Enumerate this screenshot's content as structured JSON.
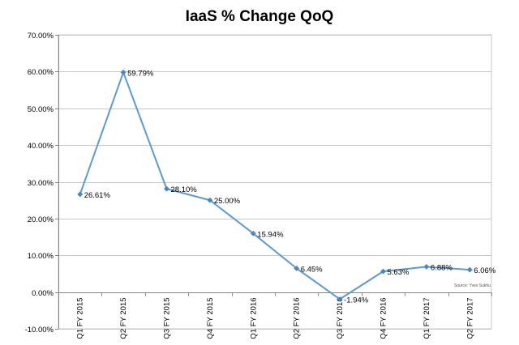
{
  "chart_data": {
    "type": "line",
    "title": "IaaS % Change QoQ",
    "xlabel": "",
    "ylabel": "",
    "categories": [
      "Q1 FY 2015",
      "Q2 FY 2015",
      "Q3 FY 2015",
      "Q4 FY 2015",
      "Q1 FY 2016",
      "Q2 FY 2016",
      "Q3 FY 2016",
      "Q4 FY 2016",
      "Q1 FY 2017",
      "Q2 FY 2017"
    ],
    "values": [
      26.61,
      59.79,
      28.1,
      25.0,
      15.94,
      6.45,
      -1.94,
      5.63,
      6.88,
      6.06
    ],
    "data_labels": [
      "26.61%",
      "59.79%",
      "28.10%",
      "25.00%",
      "15.94%",
      "6.45%",
      "-1.94%",
      "5.63%",
      "6.88%",
      "6.06%"
    ],
    "ylim": [
      -10,
      70
    ],
    "y_ticks": [
      70,
      60,
      50,
      40,
      30,
      20,
      10,
      0,
      -10
    ],
    "y_tick_labels": [
      "70.00%",
      "60.00%",
      "50.00%",
      "40.00%",
      "30.00%",
      "20.00%",
      "10.00%",
      "0.00%",
      "-10.00%"
    ],
    "grid": true,
    "source_note": "Source: Yves Sukhu",
    "colors": {
      "line": "#5b9bd5",
      "marker": "#4a86c5",
      "grid": "#c8c8c8",
      "axis": "#868686"
    }
  }
}
